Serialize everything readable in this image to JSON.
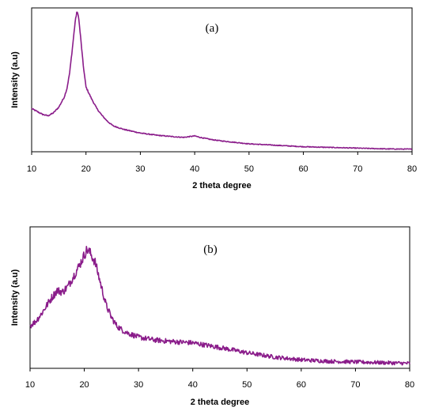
{
  "colors": {
    "trace": "#8a1c8a",
    "axis": "#000000"
  },
  "chart_data": [
    {
      "type": "line",
      "panel_label": "(a)",
      "xlabel": "2 theta degree",
      "ylabel": "Intensity (a.u)",
      "xlim": [
        10,
        80
      ],
      "ylim": [
        0,
        1
      ],
      "x_ticks": [
        "10",
        "20",
        "30",
        "40",
        "50",
        "60",
        "70",
        "80"
      ],
      "grid": false,
      "yticks_shown": false,
      "noise": 0.006,
      "series": [
        {
          "x": [
            10,
            11,
            12,
            13,
            14,
            15,
            16,
            16.5,
            17,
            17.5,
            18,
            18.3,
            18.6,
            19,
            19.5,
            20,
            21,
            22,
            23,
            24,
            25,
            27,
            30,
            33,
            36,
            38,
            39,
            40,
            41,
            43,
            45,
            50,
            55,
            60,
            65,
            70,
            75,
            80
          ],
          "y": [
            0.3,
            0.28,
            0.26,
            0.25,
            0.27,
            0.31,
            0.38,
            0.44,
            0.55,
            0.72,
            0.9,
            0.97,
            0.95,
            0.8,
            0.6,
            0.45,
            0.37,
            0.3,
            0.25,
            0.21,
            0.18,
            0.155,
            0.13,
            0.115,
            0.105,
            0.1,
            0.105,
            0.11,
            0.1,
            0.085,
            0.075,
            0.055,
            0.045,
            0.035,
            0.03,
            0.025,
            0.02,
            0.018
          ]
        }
      ]
    },
    {
      "type": "line",
      "panel_label": "(b)",
      "xlabel": "2 theta degree",
      "ylabel": "Intensity (a.u)",
      "xlim": [
        10,
        80
      ],
      "ylim": [
        0,
        1
      ],
      "x_ticks": [
        "10",
        "20",
        "30",
        "40",
        "50",
        "60",
        "70",
        "80"
      ],
      "grid": false,
      "yticks_shown": false,
      "noise": 0.03,
      "series": [
        {
          "x": [
            10,
            11,
            12,
            13,
            14,
            15,
            16,
            17,
            18,
            19,
            20,
            20.5,
            21,
            22,
            23,
            24,
            25,
            26,
            27,
            28,
            30,
            33,
            36,
            40,
            43,
            46,
            50,
            55,
            60,
            65,
            70,
            75,
            80
          ],
          "y": [
            0.3,
            0.33,
            0.38,
            0.44,
            0.5,
            0.55,
            0.54,
            0.58,
            0.65,
            0.72,
            0.8,
            0.84,
            0.82,
            0.75,
            0.6,
            0.45,
            0.36,
            0.3,
            0.27,
            0.25,
            0.22,
            0.2,
            0.19,
            0.18,
            0.16,
            0.14,
            0.11,
            0.08,
            0.06,
            0.05,
            0.045,
            0.04,
            0.035
          ]
        }
      ]
    }
  ]
}
